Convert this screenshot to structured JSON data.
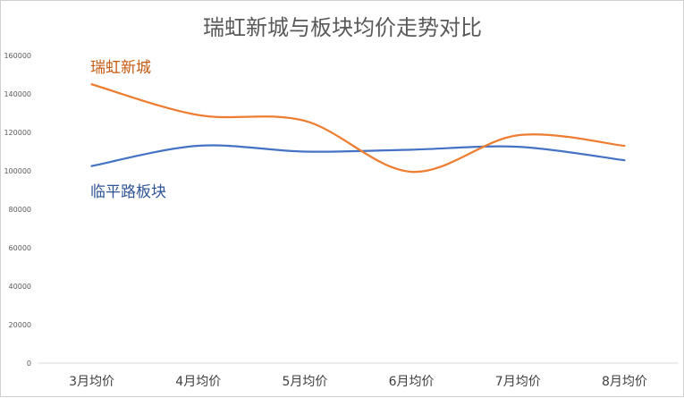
{
  "chart_data": {
    "type": "line",
    "title": "瑞虹新城与板块均价走势对比",
    "xlabel": "",
    "ylabel": "",
    "categories": [
      "3月均价",
      "4月均价",
      "5月均价",
      "6月均价",
      "7月均价",
      "8月均价"
    ],
    "ylim": [
      0,
      160000
    ],
    "yticks": [
      0,
      20000,
      40000,
      60000,
      80000,
      100000,
      120000,
      140000,
      160000
    ],
    "grid": false,
    "series": [
      {
        "name": "瑞虹新城",
        "color": "#ed7d31",
        "values": [
          145000,
          129000,
          126000,
          99500,
          118500,
          113000
        ]
      },
      {
        "name": "临平路板块",
        "color": "#4472c4",
        "values": [
          102500,
          113000,
          110000,
          111000,
          112500,
          105500
        ]
      }
    ]
  },
  "labels": {
    "ruihong": "瑞虹新城",
    "linping": "临平路板块"
  }
}
